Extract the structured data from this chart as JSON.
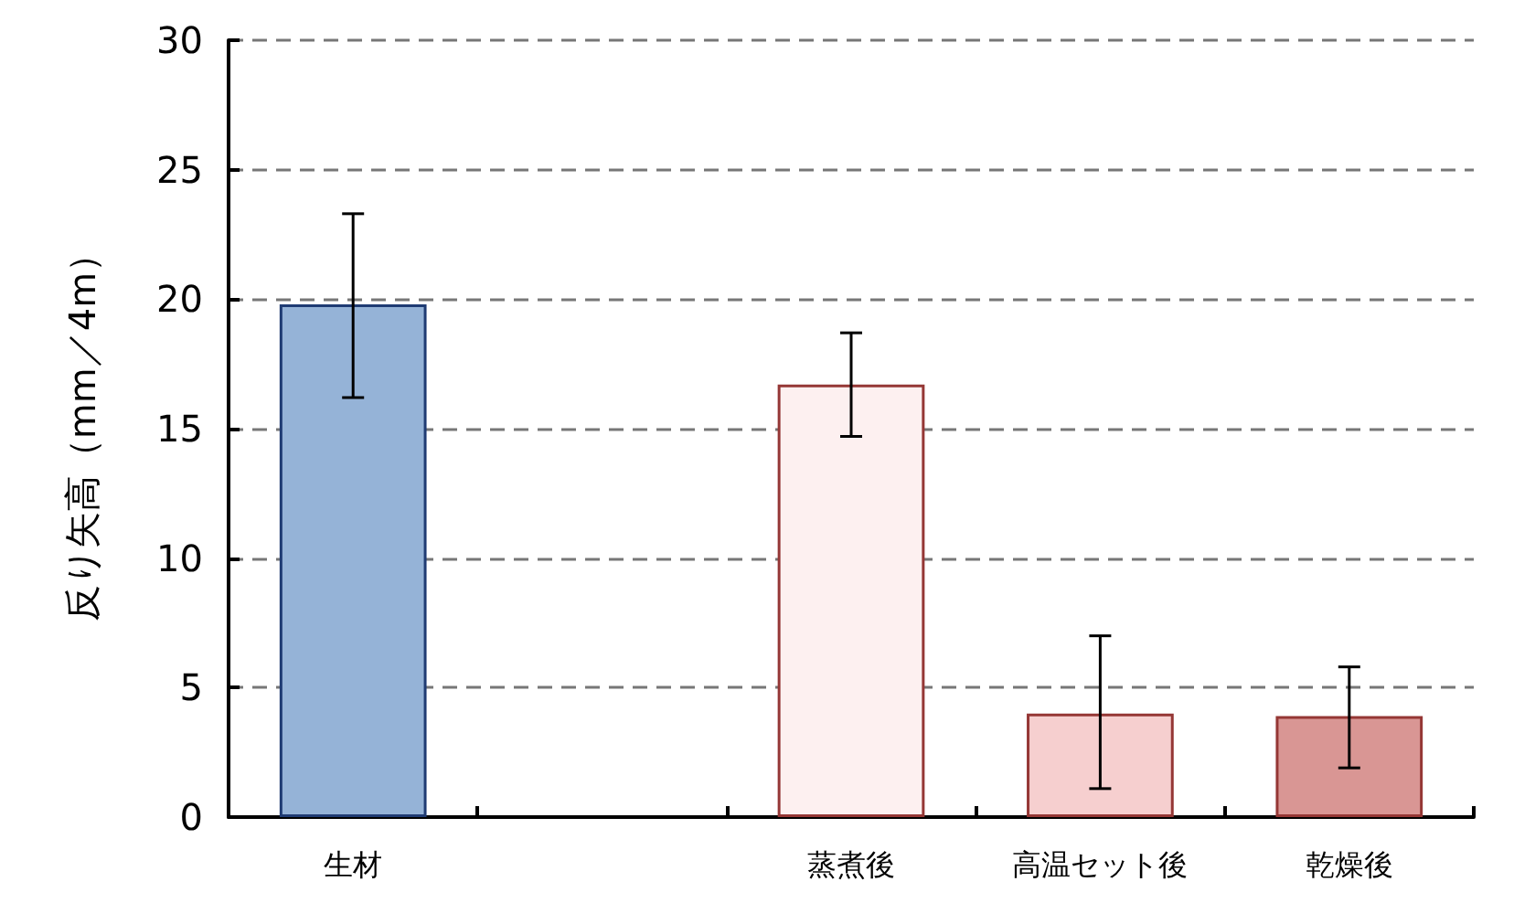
{
  "chart_data": {
    "type": "bar",
    "ylabel": "反り矢高（mm／4m）",
    "categories": [
      "生材",
      null,
      "蒸煮後",
      "高温セット後",
      "乾燥後"
    ],
    "values": [
      19.8,
      null,
      16.7,
      4.0,
      3.9
    ],
    "colors": [
      "#95b3d7",
      null,
      "#fdf0f0",
      "#f6cfcf",
      "#d99694"
    ],
    "errors": [
      [
        16.2,
        23.3
      ],
      null,
      [
        14.7,
        18.7
      ],
      [
        1.1,
        7.0
      ],
      [
        1.9,
        5.8
      ]
    ],
    "ylim": [
      0,
      30
    ],
    "yticks": [
      0,
      5,
      10,
      15,
      20,
      25,
      30
    ],
    "grid": "y"
  }
}
